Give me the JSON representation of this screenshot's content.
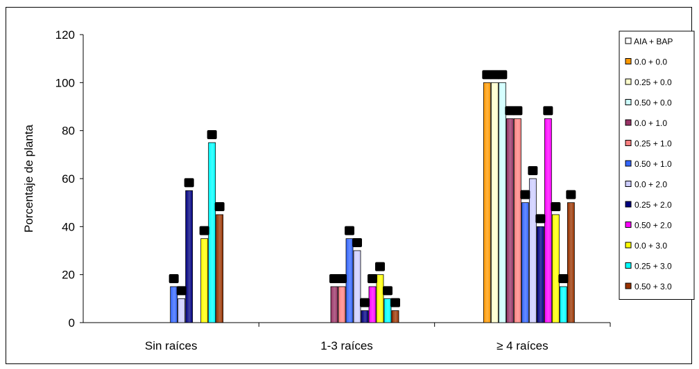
{
  "chart_data": {
    "type": "bar",
    "title": "",
    "xlabel": "",
    "ylabel": "Porcentaje de planta",
    "ylim": [
      0,
      120
    ],
    "yticks": [
      "0",
      "20",
      "40",
      "60",
      "80",
      "100",
      "120"
    ],
    "categories": [
      "Sin raíces",
      "1-3 raíces",
      "≥ 4 raíces"
    ],
    "legend_header": "AIA   + BAP",
    "legend_position": "right",
    "grid": false,
    "series": [
      {
        "name": "0.0  + 0.0",
        "color": "#ff9900",
        "values": [
          0,
          0,
          100
        ]
      },
      {
        "name": "0.25 + 0.0",
        "color": "#ffffcc",
        "values": [
          0,
          0,
          100
        ]
      },
      {
        "name": "0.50 + 0.0",
        "color": "#ccffff",
        "values": [
          0,
          0,
          100
        ]
      },
      {
        "name": "0.0   + 1.0",
        "color": "#993366",
        "values": [
          0,
          15,
          85
        ]
      },
      {
        "name": "0.25 + 1.0",
        "color": "#ff8080",
        "values": [
          0,
          15,
          85
        ]
      },
      {
        "name": "0.50 + 1.0",
        "color": "#3366ff",
        "values": [
          15,
          35,
          50
        ]
      },
      {
        "name": " 0.0  + 2.0",
        "color": "#ccccff",
        "values": [
          10,
          30,
          60
        ]
      },
      {
        "name": "0.25 + 2.0",
        "color": "#000080",
        "values": [
          55,
          5,
          40
        ]
      },
      {
        "name": "0.50 + 2.0",
        "color": "#ff00ff",
        "values": [
          0,
          15,
          85
        ]
      },
      {
        "name": "0.0  + 3.0",
        "color": "#ffff00",
        "values": [
          35,
          20,
          45
        ]
      },
      {
        "name": "0.25 + 3.0",
        "color": "#00ffff",
        "values": [
          75,
          10,
          15
        ]
      },
      {
        "name": "0.50 + 3.0",
        "color": "#993300",
        "values": [
          45,
          5,
          50
        ]
      }
    ]
  }
}
